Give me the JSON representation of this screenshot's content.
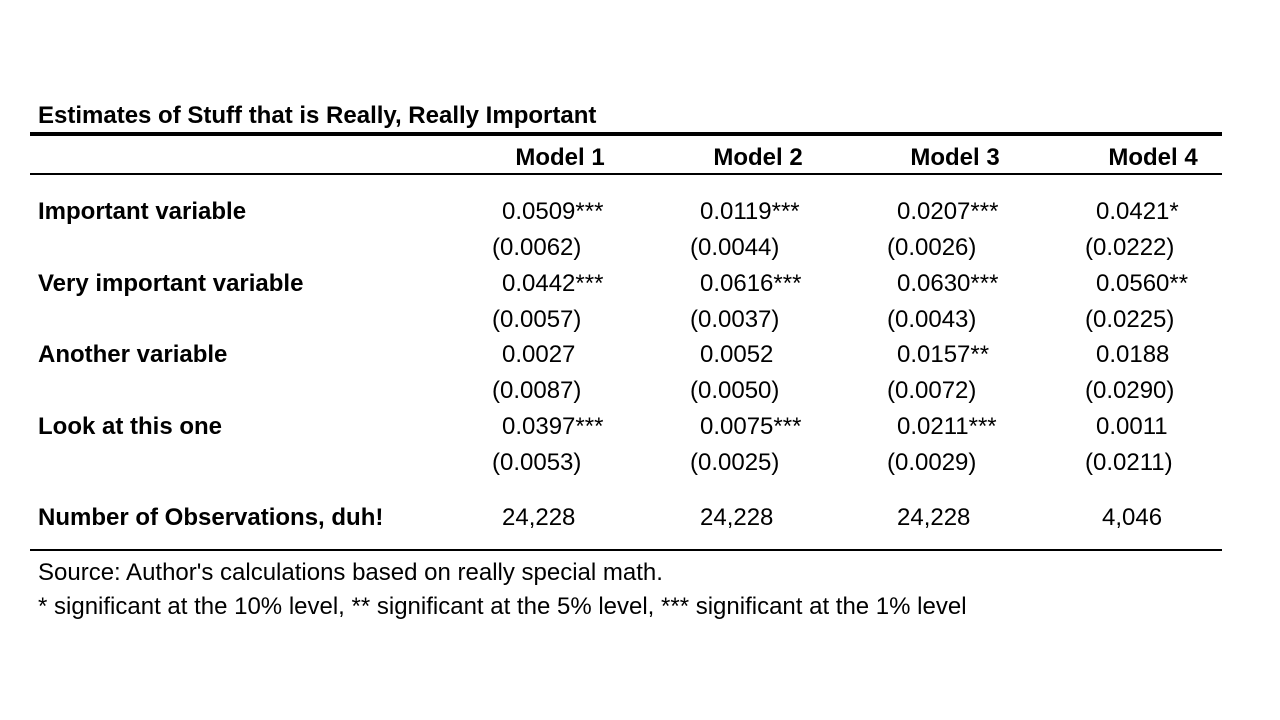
{
  "table": {
    "title": "Estimates of Stuff that is Really, Really Important",
    "columns": [
      "Model 1",
      "Model 2",
      "Model 3",
      "Model 4"
    ],
    "rows": [
      {
        "label": "Important variable",
        "estimates": [
          "0.0509***",
          "0.0119***",
          "0.0207***",
          "0.0421*"
        ],
        "std_errors": [
          "(0.0062)",
          "(0.0044)",
          "(0.0026)",
          "(0.0222)"
        ]
      },
      {
        "label": "Very important variable",
        "estimates": [
          "0.0442***",
          "0.0616***",
          "0.0630***",
          "0.0560**"
        ],
        "std_errors": [
          "(0.0057)",
          "(0.0037)",
          "(0.0043)",
          "(0.0225)"
        ]
      },
      {
        "label": "Another variable",
        "estimates": [
          "0.0027",
          "0.0052",
          "0.0157**",
          "0.0188"
        ],
        "std_errors": [
          "(0.0087)",
          "(0.0050)",
          "(0.0072)",
          "(0.0290)"
        ]
      },
      {
        "label": "Look at this one",
        "estimates": [
          "0.0397***",
          "0.0075***",
          "0.0211***",
          "0.0011"
        ],
        "std_errors": [
          "(0.0053)",
          "(0.0025)",
          "(0.0029)",
          "(0.0211)"
        ]
      }
    ],
    "observations": {
      "label": "Number of Observations, duh!",
      "values": [
        "24,228",
        "24,228",
        "24,228",
        "4,046"
      ]
    },
    "notes": {
      "source": "Source: Author's calculations based on really special math.",
      "significance": "* significant at the 10% level, ** significant at the 5% level, *** significant at the 1% level"
    }
  }
}
